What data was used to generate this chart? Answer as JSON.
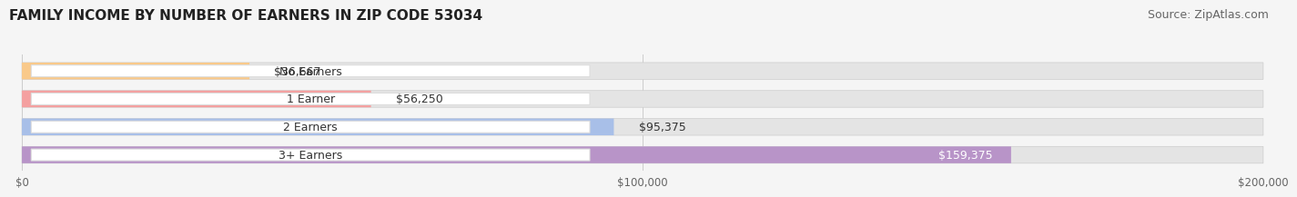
{
  "title": "FAMILY INCOME BY NUMBER OF EARNERS IN ZIP CODE 53034",
  "source": "Source: ZipAtlas.com",
  "categories": [
    "No Earners",
    "1 Earner",
    "2 Earners",
    "3+ Earners"
  ],
  "values": [
    36667,
    56250,
    95375,
    159375
  ],
  "bar_colors": [
    "#f9c98a",
    "#f4a0a0",
    "#a8bfe8",
    "#b894c8"
  ],
  "x_max": 200000,
  "x_ticks": [
    0,
    100000,
    200000
  ],
  "x_tick_labels": [
    "$0",
    "$100,000",
    "$200,000"
  ],
  "background_color": "#f5f5f5",
  "bar_bg_color": "#e4e4e4",
  "title_fontsize": 11,
  "source_fontsize": 9,
  "label_fontsize": 9,
  "value_fontsize": 9
}
